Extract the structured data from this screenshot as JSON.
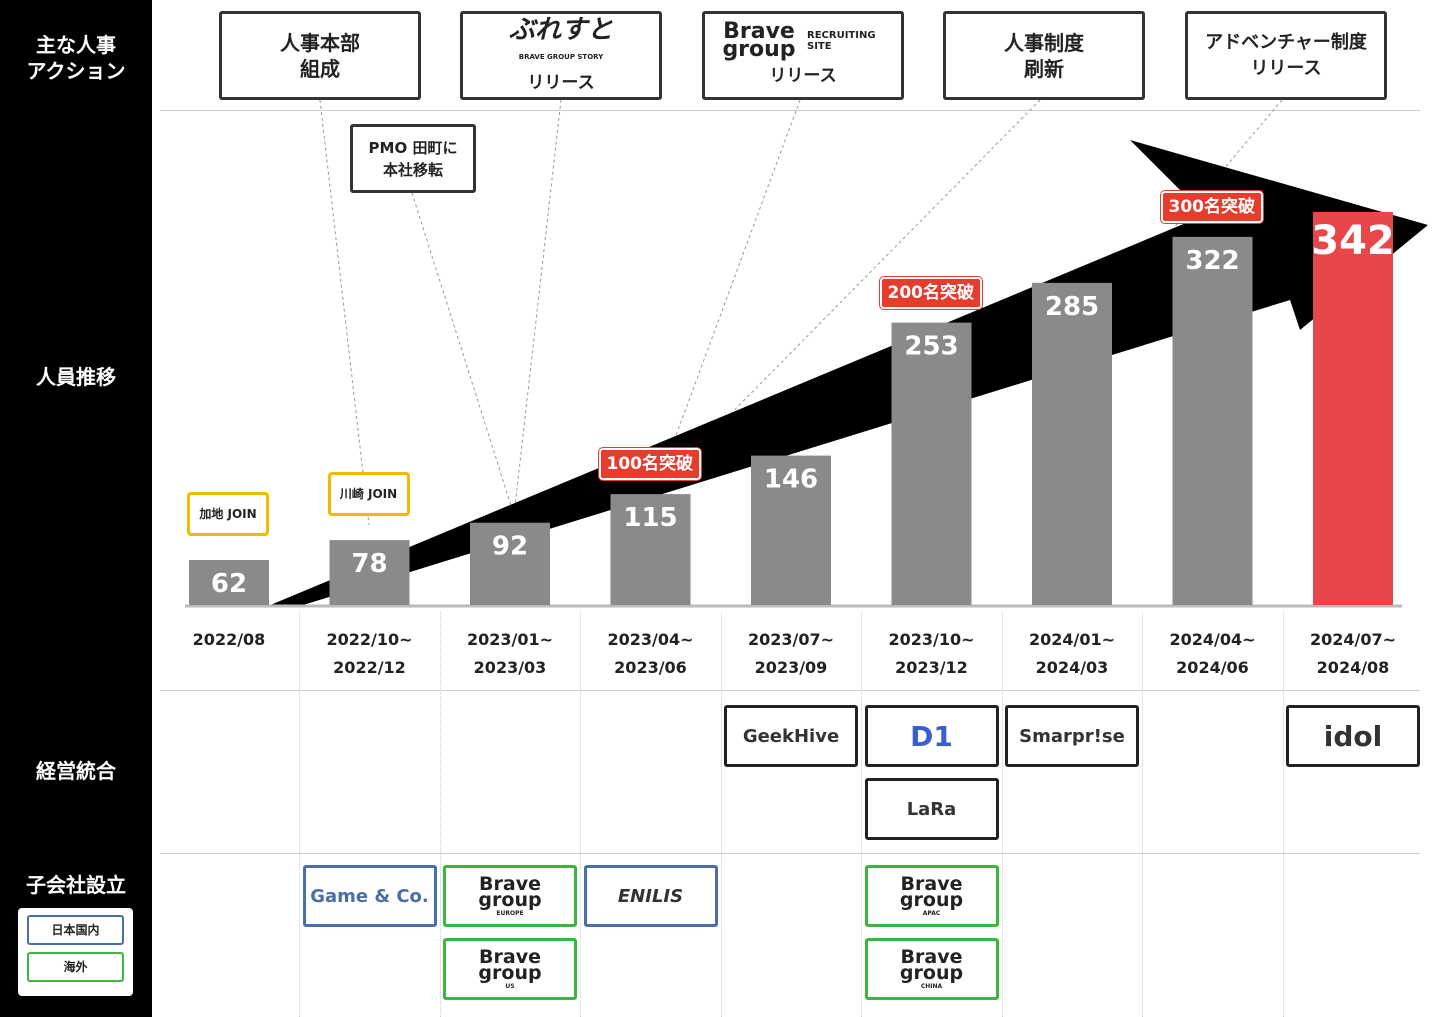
{
  "sidebar": {
    "actions": "主な人事\nアクション",
    "headcount": "人員推移",
    "integration": "経営統合",
    "subsidiary": "子会社設立",
    "legend": [
      {
        "label": "日本国内",
        "color": "#4a6fa5"
      },
      {
        "label": "海外",
        "color": "#3cb63c"
      }
    ]
  },
  "actions": [
    {
      "line1": "人事本部",
      "line2": "組成"
    },
    {
      "logo": "ぶれすと",
      "logo_sub": "BRAVE GROUP STORY",
      "line2": "リリース"
    },
    {
      "logo": "Brave group",
      "logo_sub": "RECRUITING SITE",
      "line2": "リリース"
    },
    {
      "line1": "人事制度",
      "line2": "刷新"
    },
    {
      "line1": "アドベンチャー制度",
      "line2": "リリース"
    }
  ],
  "pmo": {
    "line1": "PMO 田町に",
    "line2": "本社移転"
  },
  "chart_data": {
    "type": "bar",
    "categories": [
      "2022/08",
      "2022/10~\n2022/12",
      "2023/01~\n2023/03",
      "2023/04~\n2023/06",
      "2023/07~\n2023/09",
      "2023/10~\n2023/12",
      "2024/01~\n2024/03",
      "2024/04~\n2024/06",
      "2024/07~\n2024/08"
    ],
    "values": [
      62,
      78,
      92,
      115,
      146,
      253,
      285,
      322,
      342
    ],
    "bar_color": "#8a8a8a",
    "highlight_color": "#e8474a",
    "highlight_index": 8,
    "annotations": [
      {
        "index": 0,
        "text": "加地 JOIN"
      },
      {
        "index": 1,
        "text": "川崎 JOIN"
      }
    ],
    "milestones": [
      {
        "index": 3,
        "text": "100名突破"
      },
      {
        "index": 5,
        "text": "200名突破"
      },
      {
        "index": 7,
        "text": "300名突破"
      }
    ],
    "ylim": [
      0,
      342
    ]
  },
  "integration": [
    {
      "col": 4,
      "row": 0,
      "name": "GeekHive"
    },
    {
      "col": 5,
      "row": 0,
      "name": "D1"
    },
    {
      "col": 6,
      "row": 0,
      "name": "Smarpr!se"
    },
    {
      "col": 8,
      "row": 0,
      "name": "idol"
    },
    {
      "col": 5,
      "row": 1,
      "name": "LaRa"
    }
  ],
  "subsidiaries": [
    {
      "col": 1,
      "row": 0,
      "name": "Game & Co.",
      "region": "domestic"
    },
    {
      "col": 2,
      "row": 0,
      "name": "Brave group",
      "sub": "EUROPE",
      "region": "overseas"
    },
    {
      "col": 3,
      "row": 0,
      "name": "ENILIS",
      "region": "domestic"
    },
    {
      "col": 2,
      "row": 1,
      "name": "Brave group",
      "sub": "US",
      "region": "overseas"
    },
    {
      "col": 5,
      "row": 0,
      "name": "Brave group",
      "sub": "APAC",
      "region": "overseas"
    },
    {
      "col": 5,
      "row": 1,
      "name": "Brave group",
      "sub": "CHINA",
      "region": "overseas"
    }
  ]
}
